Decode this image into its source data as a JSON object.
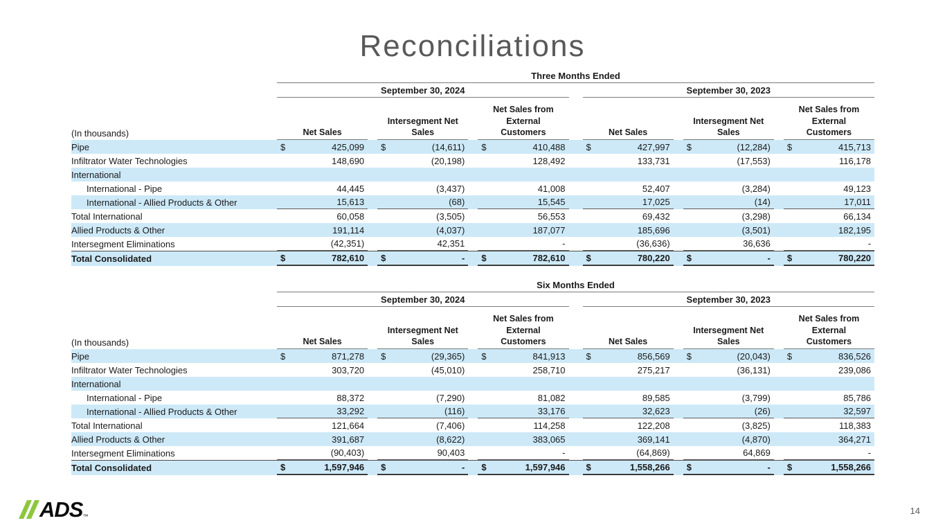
{
  "slide": {
    "title": "Reconciliations",
    "page_number": "14",
    "logo": {
      "text": "ADS",
      "tm": "™",
      "slash_color": "#8DC63F"
    }
  },
  "colors": {
    "stripe_blue": "#cde9f8",
    "title_gray": "#595959",
    "accent_green": "#8DC63F"
  },
  "tables": [
    {
      "period": "Three Months Ended",
      "years": [
        "September 30, 2024",
        "September 30, 2023"
      ],
      "in_thousands": "(In thousands)",
      "col_headers": [
        "Net Sales",
        "Intersegment Net\nSales",
        "Net Sales from\nExternal\nCustomers",
        "Net Sales",
        "Intersegment Net\nSales",
        "Net Sales from\nExternal\nCustomers"
      ],
      "rows": [
        {
          "label": "Pipe",
          "shaded": true,
          "cells": [
            [
              "$",
              "425,099"
            ],
            [
              "$",
              "(14,611)"
            ],
            [
              "$",
              "410,488"
            ],
            [
              "$",
              "427,997"
            ],
            [
              "$",
              "(12,284)"
            ],
            [
              "$",
              "415,713"
            ]
          ]
        },
        {
          "label": "Infiltrator Water Technologies",
          "cells": [
            [
              "",
              "148,690"
            ],
            [
              "",
              "(20,198)"
            ],
            [
              "",
              "128,492"
            ],
            [
              "",
              "133,731"
            ],
            [
              "",
              "(17,553)"
            ],
            [
              "",
              "116,178"
            ]
          ]
        },
        {
          "label": "International",
          "shaded": true,
          "cells": [
            [
              "",
              ""
            ],
            [
              "",
              ""
            ],
            [
              "",
              ""
            ],
            [
              "",
              ""
            ],
            [
              "",
              ""
            ],
            [
              "",
              ""
            ]
          ]
        },
        {
          "label": "International - Pipe",
          "indent": true,
          "cells": [
            [
              "",
              "44,445"
            ],
            [
              "",
              "(3,437)"
            ],
            [
              "",
              "41,008"
            ],
            [
              "",
              "52,407"
            ],
            [
              "",
              "(3,284)"
            ],
            [
              "",
              "49,123"
            ]
          ]
        },
        {
          "label": "International - Allied Products & Other",
          "indent": true,
          "shaded": true,
          "underline": true,
          "cells": [
            [
              "",
              "15,613"
            ],
            [
              "",
              "(68)"
            ],
            [
              "",
              "15,545"
            ],
            [
              "",
              "17,025"
            ],
            [
              "",
              "(14)"
            ],
            [
              "",
              "17,011"
            ]
          ]
        },
        {
          "label": "Total International",
          "cells": [
            [
              "",
              "60,058"
            ],
            [
              "",
              "(3,505)"
            ],
            [
              "",
              "56,553"
            ],
            [
              "",
              "69,432"
            ],
            [
              "",
              "(3,298)"
            ],
            [
              "",
              "66,134"
            ]
          ]
        },
        {
          "label": "Allied Products & Other",
          "shaded": true,
          "cells": [
            [
              "",
              "191,114"
            ],
            [
              "",
              "(4,037)"
            ],
            [
              "",
              "187,077"
            ],
            [
              "",
              "185,696"
            ],
            [
              "",
              "(3,501)"
            ],
            [
              "",
              "182,195"
            ]
          ]
        },
        {
          "label": "Intersegment Eliminations",
          "underline": true,
          "cells": [
            [
              "",
              "(42,351)"
            ],
            [
              "",
              "42,351"
            ],
            [
              "",
              "-"
            ],
            [
              "",
              "(36,636)"
            ],
            [
              "",
              "36,636"
            ],
            [
              "",
              "-"
            ]
          ]
        },
        {
          "label": "Total Consolidated",
          "shaded": true,
          "total": true,
          "cells": [
            [
              "$",
              "782,610"
            ],
            [
              "$",
              "-"
            ],
            [
              "$",
              "782,610"
            ],
            [
              "$",
              "780,220"
            ],
            [
              "$",
              "-"
            ],
            [
              "$",
              "780,220"
            ]
          ]
        }
      ]
    },
    {
      "period": "Six Months Ended",
      "years": [
        "September 30, 2024",
        "September 30, 2023"
      ],
      "in_thousands": "(In thousands)",
      "col_headers": [
        "Net Sales",
        "Intersegment Net\nSales",
        "Net Sales from\nExternal\nCustomers",
        "Net Sales",
        "Intersegment Net\nSales",
        "Net Sales from\nExternal\nCustomers"
      ],
      "rows": [
        {
          "label": "Pipe",
          "shaded": true,
          "cells": [
            [
              "$",
              "871,278"
            ],
            [
              "$",
              "(29,365)"
            ],
            [
              "$",
              "841,913"
            ],
            [
              "$",
              "856,569"
            ],
            [
              "$",
              "(20,043)"
            ],
            [
              "$",
              "836,526"
            ]
          ]
        },
        {
          "label": "Infiltrator Water Technologies",
          "cells": [
            [
              "",
              "303,720"
            ],
            [
              "",
              "(45,010)"
            ],
            [
              "",
              "258,710"
            ],
            [
              "",
              "275,217"
            ],
            [
              "",
              "(36,131)"
            ],
            [
              "",
              "239,086"
            ]
          ]
        },
        {
          "label": "International",
          "shaded": true,
          "cells": [
            [
              "",
              ""
            ],
            [
              "",
              ""
            ],
            [
              "",
              ""
            ],
            [
              "",
              ""
            ],
            [
              "",
              ""
            ],
            [
              "",
              ""
            ]
          ]
        },
        {
          "label": "International - Pipe",
          "indent": true,
          "cells": [
            [
              "",
              "88,372"
            ],
            [
              "",
              "(7,290)"
            ],
            [
              "",
              "81,082"
            ],
            [
              "",
              "89,585"
            ],
            [
              "",
              "(3,799)"
            ],
            [
              "",
              "85,786"
            ]
          ]
        },
        {
          "label": "International - Allied Products & Other",
          "indent": true,
          "shaded": true,
          "underline": true,
          "cells": [
            [
              "",
              "33,292"
            ],
            [
              "",
              "(116)"
            ],
            [
              "",
              "33,176"
            ],
            [
              "",
              "32,623"
            ],
            [
              "",
              "(26)"
            ],
            [
              "",
              "32,597"
            ]
          ]
        },
        {
          "label": "Total International",
          "cells": [
            [
              "",
              "121,664"
            ],
            [
              "",
              "(7,406)"
            ],
            [
              "",
              "114,258"
            ],
            [
              "",
              "122,208"
            ],
            [
              "",
              "(3,825)"
            ],
            [
              "",
              "118,383"
            ]
          ]
        },
        {
          "label": "Allied Products & Other",
          "shaded": true,
          "cells": [
            [
              "",
              "391,687"
            ],
            [
              "",
              "(8,622)"
            ],
            [
              "",
              "383,065"
            ],
            [
              "",
              "369,141"
            ],
            [
              "",
              "(4,870)"
            ],
            [
              "",
              "364,271"
            ]
          ]
        },
        {
          "label": "Intersegment Eliminations",
          "underline": true,
          "cells": [
            [
              "",
              "(90,403)"
            ],
            [
              "",
              "90,403"
            ],
            [
              "",
              "-"
            ],
            [
              "",
              "(64,869)"
            ],
            [
              "",
              "64,869"
            ],
            [
              "",
              "-"
            ]
          ]
        },
        {
          "label": "Total Consolidated",
          "shaded": true,
          "total": true,
          "cells": [
            [
              "$",
              "1,597,946"
            ],
            [
              "$",
              "-"
            ],
            [
              "$",
              "1,597,946"
            ],
            [
              "$",
              "1,558,266"
            ],
            [
              "$",
              "-"
            ],
            [
              "$",
              "1,558,266"
            ]
          ]
        }
      ]
    }
  ]
}
